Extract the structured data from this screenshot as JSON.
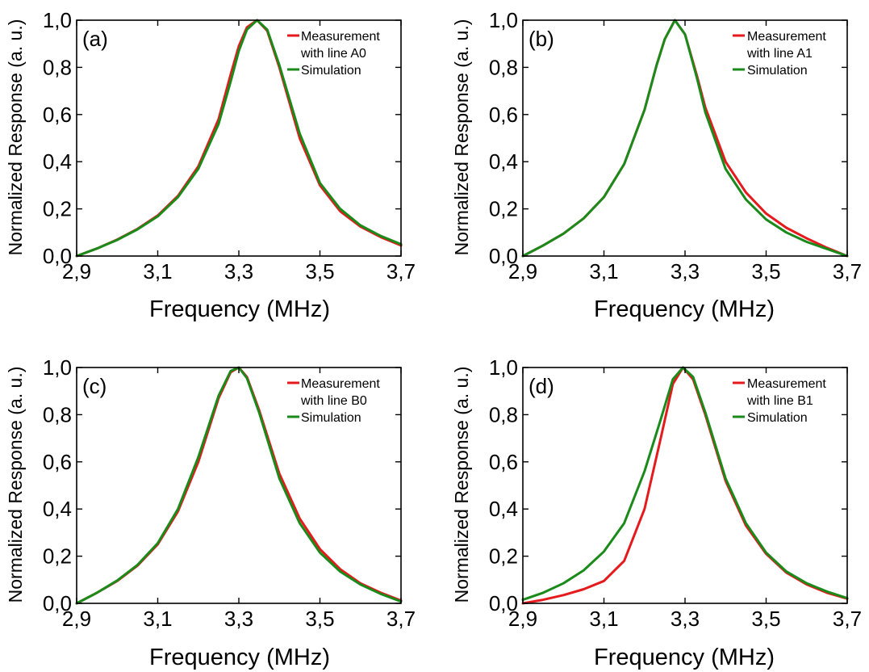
{
  "chart_data": [
    {
      "type": "line",
      "panel_label": "(a)",
      "xlabel": "Frequency (MHz)",
      "ylabel": "Normalized Response (a. u.)",
      "xlim": [
        2.9,
        3.7
      ],
      "ylim": [
        0.0,
        1.0
      ],
      "xticks": [
        "2,9",
        "3,1",
        "3,3",
        "3,5",
        "3,7"
      ],
      "yticks": [
        "0,0",
        "0,2",
        "0,4",
        "0,6",
        "0,8",
        "1,0"
      ],
      "grid": false,
      "legend_position": "top-right",
      "legend": [
        "Measurement",
        "with line A0",
        "Simulation"
      ],
      "series": [
        {
          "name": "Measurement with line A0",
          "color": "#e41a1c",
          "x": [
            2.9,
            2.95,
            3.0,
            3.05,
            3.1,
            3.15,
            3.2,
            3.25,
            3.28,
            3.3,
            3.32,
            3.345,
            3.37,
            3.4,
            3.45,
            3.5,
            3.55,
            3.6,
            3.65,
            3.7
          ],
          "y": [
            0.0,
            0.032,
            0.07,
            0.115,
            0.172,
            0.255,
            0.38,
            0.58,
            0.77,
            0.89,
            0.97,
            1.0,
            0.955,
            0.8,
            0.5,
            0.3,
            0.19,
            0.125,
            0.08,
            0.045
          ]
        },
        {
          "name": "Simulation",
          "color": "#1a8a1a",
          "x": [
            2.9,
            2.95,
            3.0,
            3.05,
            3.1,
            3.15,
            3.2,
            3.25,
            3.28,
            3.3,
            3.32,
            3.345,
            3.37,
            3.4,
            3.45,
            3.5,
            3.55,
            3.6,
            3.65,
            3.7
          ],
          "y": [
            0.0,
            0.032,
            0.068,
            0.113,
            0.168,
            0.25,
            0.37,
            0.56,
            0.74,
            0.87,
            0.96,
            1.0,
            0.96,
            0.81,
            0.52,
            0.31,
            0.2,
            0.13,
            0.085,
            0.05
          ]
        }
      ]
    },
    {
      "type": "line",
      "panel_label": "(b)",
      "xlabel": "Frequency (MHz)",
      "ylabel": "Normalized Response (a. u.)",
      "xlim": [
        2.9,
        3.7
      ],
      "ylim": [
        0.0,
        1.0
      ],
      "xticks": [
        "2,9",
        "3,1",
        "3,3",
        "3,5",
        "3,7"
      ],
      "yticks": [
        "0,0",
        "0,2",
        "0,4",
        "0,6",
        "0,8",
        "1,0"
      ],
      "grid": false,
      "legend_position": "top-right",
      "legend": [
        "Measurement",
        "with line A1",
        "Simulation"
      ],
      "series": [
        {
          "name": "Measurement with line A1",
          "color": "#e41a1c",
          "x": [
            2.9,
            2.95,
            3.0,
            3.05,
            3.1,
            3.15,
            3.2,
            3.23,
            3.25,
            3.275,
            3.3,
            3.33,
            3.35,
            3.4,
            3.45,
            3.5,
            3.55,
            3.6,
            3.65,
            3.7
          ],
          "y": [
            0.0,
            0.045,
            0.095,
            0.16,
            0.25,
            0.39,
            0.62,
            0.81,
            0.92,
            1.0,
            0.94,
            0.76,
            0.63,
            0.4,
            0.27,
            0.18,
            0.12,
            0.075,
            0.035,
            0.0
          ]
        },
        {
          "name": "Simulation",
          "color": "#1a8a1a",
          "x": [
            2.9,
            2.95,
            3.0,
            3.05,
            3.1,
            3.15,
            3.2,
            3.23,
            3.25,
            3.275,
            3.3,
            3.33,
            3.35,
            3.4,
            3.45,
            3.5,
            3.55,
            3.6,
            3.65,
            3.7
          ],
          "y": [
            0.0,
            0.045,
            0.095,
            0.16,
            0.25,
            0.39,
            0.62,
            0.81,
            0.92,
            1.0,
            0.94,
            0.75,
            0.61,
            0.37,
            0.24,
            0.155,
            0.1,
            0.06,
            0.03,
            0.0
          ]
        }
      ]
    },
    {
      "type": "line",
      "panel_label": "(c)",
      "xlabel": "Frequency (MHz)",
      "ylabel": "Normalized Response (a. u.)",
      "xlim": [
        2.9,
        3.7
      ],
      "ylim": [
        0.0,
        1.0
      ],
      "xticks": [
        "2,9",
        "3,1",
        "3,3",
        "3,5",
        "3,7"
      ],
      "yticks": [
        "0,0",
        "0,2",
        "0,4",
        "0,6",
        "0,8",
        "1,0"
      ],
      "grid": false,
      "legend_position": "top-right",
      "legend": [
        "Measurement",
        "with line B0",
        "Simulation"
      ],
      "series": [
        {
          "name": "Measurement with line B0",
          "color": "#e41a1c",
          "x": [
            2.9,
            2.95,
            3.0,
            3.05,
            3.1,
            3.15,
            3.2,
            3.25,
            3.28,
            3.3,
            3.32,
            3.35,
            3.4,
            3.45,
            3.5,
            3.55,
            3.6,
            3.65,
            3.7
          ],
          "y": [
            0.0,
            0.045,
            0.095,
            0.16,
            0.25,
            0.39,
            0.6,
            0.87,
            0.98,
            1.0,
            0.96,
            0.82,
            0.55,
            0.36,
            0.23,
            0.145,
            0.085,
            0.045,
            0.012
          ]
        },
        {
          "name": "Simulation",
          "color": "#1a8a1a",
          "x": [
            2.9,
            2.95,
            3.0,
            3.05,
            3.1,
            3.15,
            3.2,
            3.25,
            3.28,
            3.3,
            3.32,
            3.35,
            3.4,
            3.45,
            3.5,
            3.55,
            3.6,
            3.65,
            3.7
          ],
          "y": [
            0.0,
            0.045,
            0.097,
            0.163,
            0.255,
            0.4,
            0.62,
            0.88,
            0.985,
            1.0,
            0.955,
            0.81,
            0.53,
            0.34,
            0.215,
            0.135,
            0.08,
            0.04,
            0.008
          ]
        }
      ]
    },
    {
      "type": "line",
      "panel_label": "(d)",
      "xlabel": "Frequency (MHz)",
      "ylabel": "Normalized Response (a. u.)",
      "xlim": [
        2.9,
        3.7
      ],
      "ylim": [
        0.0,
        1.0
      ],
      "xticks": [
        "2,9",
        "3,1",
        "3,3",
        "3,5",
        "3,7"
      ],
      "yticks": [
        "0,0",
        "0,2",
        "0,4",
        "0,6",
        "0,8",
        "1,0"
      ],
      "grid": false,
      "legend_position": "top-right",
      "legend": [
        "Measurement",
        "with line B1",
        "Simulation"
      ],
      "series": [
        {
          "name": "Measurement with line B1",
          "color": "#e41a1c",
          "x": [
            2.9,
            2.95,
            3.0,
            3.05,
            3.1,
            3.15,
            3.2,
            3.24,
            3.27,
            3.295,
            3.32,
            3.35,
            3.4,
            3.45,
            3.5,
            3.55,
            3.6,
            3.65,
            3.7
          ],
          "y": [
            0.0,
            0.015,
            0.035,
            0.06,
            0.095,
            0.18,
            0.4,
            0.7,
            0.93,
            1.0,
            0.95,
            0.8,
            0.52,
            0.33,
            0.21,
            0.13,
            0.08,
            0.045,
            0.02
          ]
        },
        {
          "name": "Simulation",
          "color": "#1a8a1a",
          "x": [
            2.9,
            2.95,
            3.0,
            3.05,
            3.1,
            3.15,
            3.2,
            3.24,
            3.27,
            3.295,
            3.32,
            3.35,
            3.4,
            3.45,
            3.5,
            3.55,
            3.6,
            3.65,
            3.7
          ],
          "y": [
            0.015,
            0.045,
            0.085,
            0.14,
            0.22,
            0.34,
            0.56,
            0.78,
            0.95,
            1.0,
            0.96,
            0.81,
            0.53,
            0.34,
            0.215,
            0.135,
            0.085,
            0.05,
            0.022
          ]
        }
      ]
    }
  ]
}
